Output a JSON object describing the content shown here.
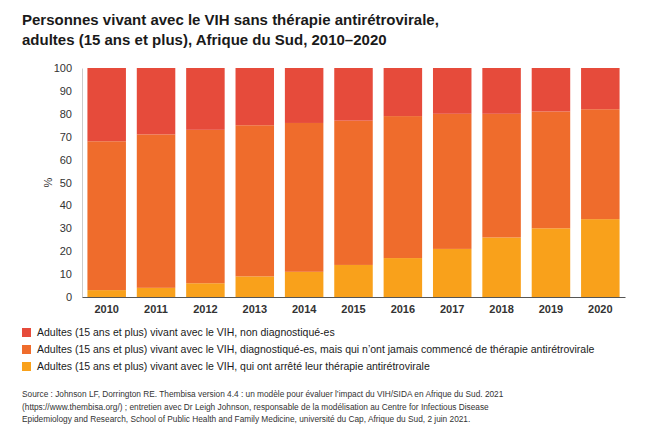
{
  "chart_data": {
    "type": "bar",
    "stacked": true,
    "title": [
      "Personnes vivant avec le VIH sans thérapie antirétrovirale,",
      "adultes (15 ans et plus), Afrique du Sud, 2010–2020"
    ],
    "y_label": "%",
    "categories": [
      "2010",
      "2011",
      "2012",
      "2013",
      "2014",
      "2015",
      "2016",
      "2017",
      "2018",
      "2019",
      "2020"
    ],
    "series": [
      {
        "name": "Adultes (15 ans et plus) vivant avec le VIH, non diagnostiqué-es",
        "color": "#e64b3b",
        "values": [
          32,
          29,
          27,
          25,
          24,
          23,
          21,
          20,
          20,
          19,
          18
        ]
      },
      {
        "name": "Adultes (15 ans et plus) vivant avec le VIH, diagnostiqué-es, mais qui n’ont jamais commencé de thérapie antirétrovirale",
        "color": "#ef6c2c",
        "values": [
          65,
          67,
          67,
          66,
          65,
          63,
          62,
          59,
          54,
          51,
          48
        ]
      },
      {
        "name": "Adultes (15 ans et plus) vivant avec le VIH, qui ont arrêté leur thérapie antirétrovirale",
        "color": "#f9a11b",
        "values": [
          3,
          4,
          6,
          9,
          11,
          14,
          17,
          21,
          26,
          30,
          34
        ]
      }
    ],
    "ylim": [
      0,
      100
    ],
    "yticks": [
      0,
      10,
      20,
      30,
      40,
      50,
      60,
      70,
      80,
      90,
      100
    ],
    "grid": false,
    "legend": "bottom",
    "source": [
      "Source : Johnson LF, Dorrington RE. Thembisa version 4.4 : un modèle pour évaluer l’impact du VIH/SIDA en Afrique du Sud. 2021",
      "(https://www.thembisa.org/) ; entretien avec Dr Leigh Johnson, responsable de la modélisation au Centre for Infectious Disease",
      "Epidemiology and Research, School of Public Health and Family Medicine, université du Cap, Afrique du Sud, 2 juin 2021."
    ]
  }
}
